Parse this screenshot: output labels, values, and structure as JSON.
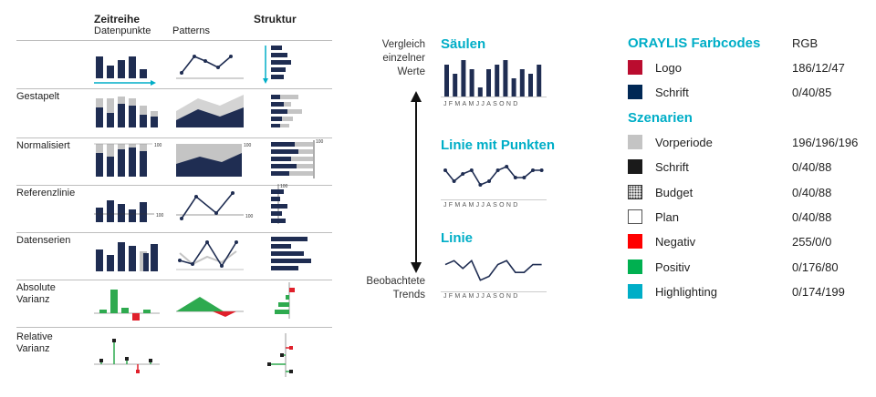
{
  "left_table": {
    "headers": {
      "col1_title": "Zeitreihe",
      "col1_sub": "Datenpunkte",
      "col2_sub": "Patterns",
      "col3_title": "Struktur"
    },
    "rows": [
      {
        "label": ""
      },
      {
        "label": "Gestapelt"
      },
      {
        "label": "Normalisiert"
      },
      {
        "label": "Referenzlinie"
      },
      {
        "label": "Datenserien"
      },
      {
        "label": "Absolute\nVarianz"
      },
      {
        "label": "Relative\nVarianz"
      }
    ],
    "value_labels": {
      "hundred": "100"
    }
  },
  "middle": {
    "top_text": "Vergleich\neinzelner\nWerte",
    "bottom_text": "Beobachtete\nTrends",
    "months": "JFMAMJJASOND"
  },
  "chart_data": [
    {
      "type": "bar",
      "title": "Säulen",
      "categories": [
        "J",
        "F",
        "M",
        "A",
        "M",
        "J",
        "J",
        "A",
        "S",
        "O",
        "N",
        "D"
      ],
      "values": [
        7,
        5,
        8,
        6,
        2,
        6,
        7,
        8,
        4,
        6,
        5,
        7
      ]
    },
    {
      "type": "line",
      "title": "Linie mit Punkten",
      "categories": [
        "J",
        "F",
        "M",
        "A",
        "M",
        "J",
        "J",
        "A",
        "S",
        "O",
        "N",
        "D"
      ],
      "values": [
        6,
        3,
        5,
        6,
        2,
        3,
        6,
        7,
        4,
        4,
        6,
        6
      ]
    },
    {
      "type": "line",
      "title": "Linie",
      "categories": [
        "J",
        "F",
        "M",
        "A",
        "M",
        "J",
        "J",
        "A",
        "S",
        "O",
        "N",
        "D"
      ],
      "values": [
        5,
        6,
        4,
        6,
        1,
        2,
        5,
        6,
        3,
        3,
        5,
        5
      ]
    }
  ],
  "legend": {
    "title": "ORAYLIS Farbcodes",
    "rgb_header": "RGB",
    "section2_title": "Szenarien",
    "items_top": [
      {
        "label": "Logo",
        "value": "186/12/47",
        "color": "#ba0c2f"
      },
      {
        "label": "Schrift",
        "value": "0/40/85",
        "color": "#002855"
      }
    ],
    "items_bottom": [
      {
        "label": "Vorperiode",
        "value": "196/196/196",
        "color": "#c4c4c4",
        "pattern": "solid"
      },
      {
        "label": "Schrift",
        "value": "0/40/88",
        "color": "#1a1a1a",
        "pattern": "solid"
      },
      {
        "label": "Budget",
        "value": "0/40/88",
        "color": "#333333",
        "pattern": "dots"
      },
      {
        "label": "Plan",
        "value": "0/40/88",
        "color": "#ffffff",
        "pattern": "outline"
      },
      {
        "label": "Negativ",
        "value": "255/0/0",
        "color": "#ff0000",
        "pattern": "solid"
      },
      {
        "label": "Positiv",
        "value": "0/176/80",
        "color": "#00b050",
        "pattern": "solid"
      },
      {
        "label": "Highlighting",
        "value": "0/174/199",
        "color": "#00aec7",
        "pattern": "solid"
      }
    ]
  },
  "colors": {
    "navy": "#1f2d52",
    "gray": "#c4c4c4",
    "teal": "#00aec7",
    "green": "#2eaa4f",
    "red": "#e0202b",
    "rule": "#bdbdbd"
  }
}
